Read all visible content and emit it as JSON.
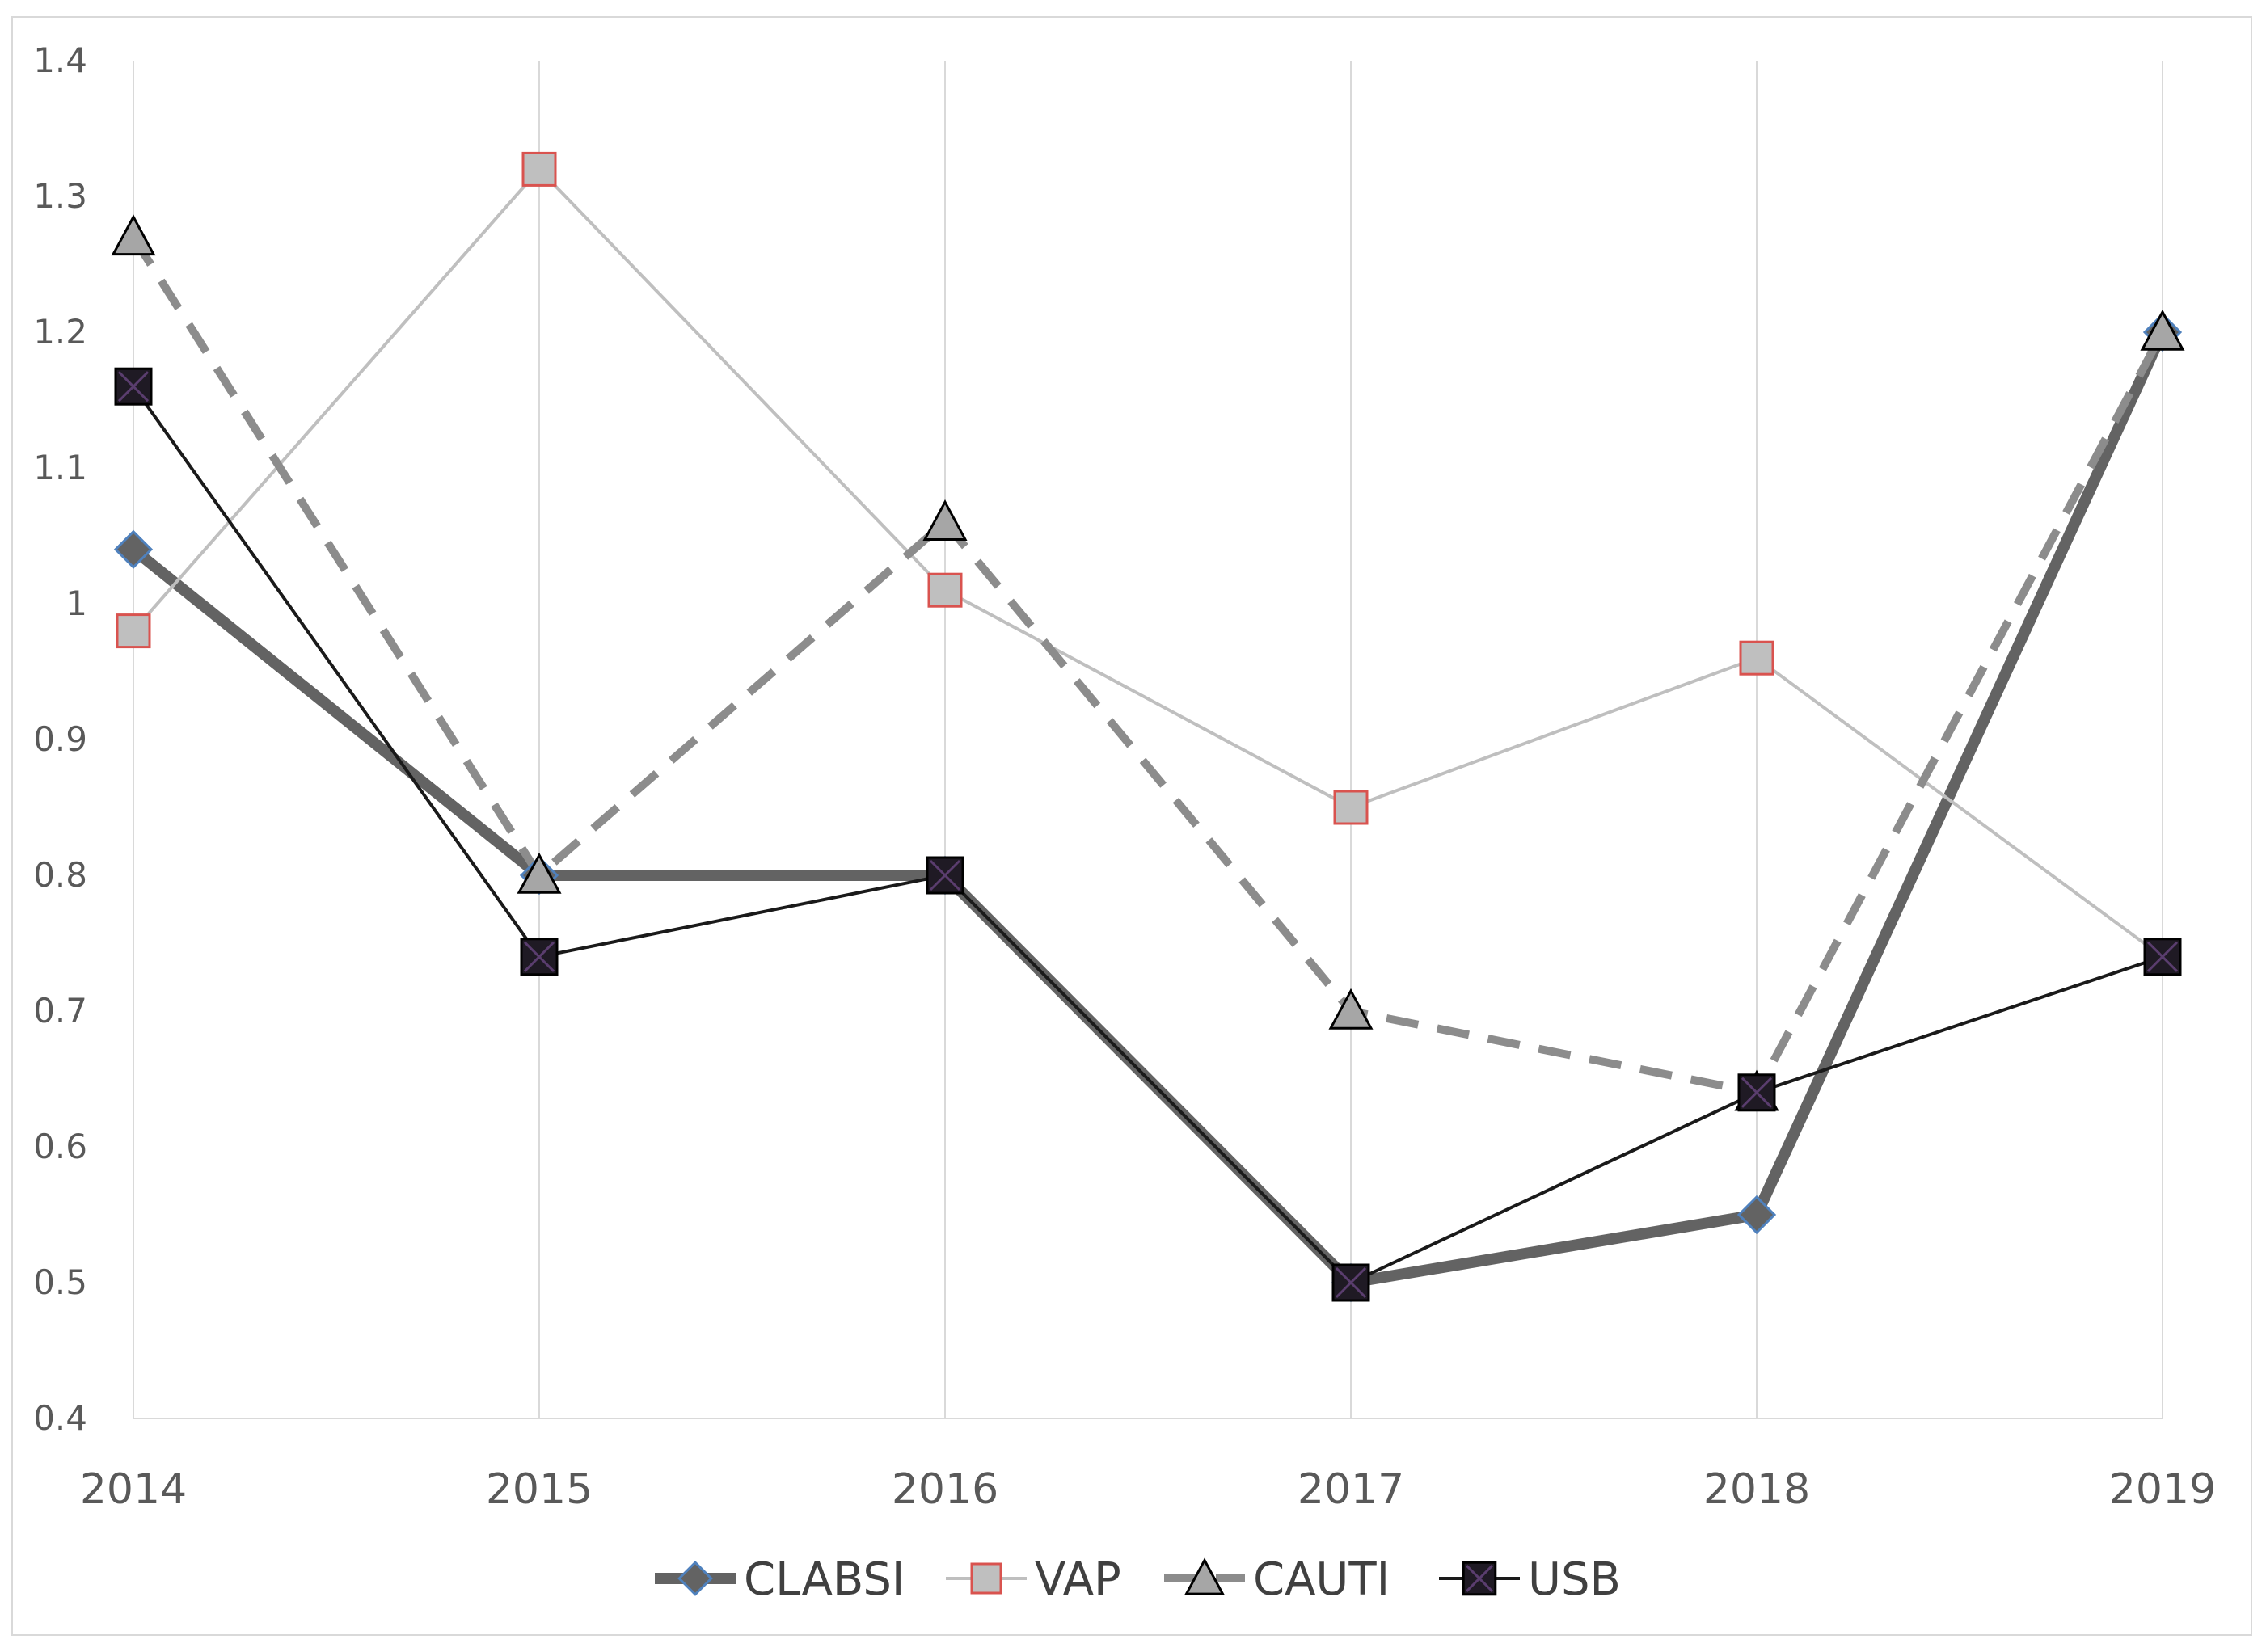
{
  "chart_data": {
    "type": "line",
    "title": "",
    "xlabel": "",
    "ylabel": "",
    "categories": [
      "2014",
      "2015",
      "2016",
      "2017",
      "2018",
      "2019"
    ],
    "ylim": [
      0.4,
      1.4
    ],
    "yticks": [
      0.4,
      0.5,
      0.6,
      0.7,
      0.8,
      0.9,
      1,
      1.1,
      1.2,
      1.3,
      1.4
    ],
    "ytick_labels": [
      "0.4",
      "0.5",
      "0.6",
      "0.7",
      "0.8",
      "0.9",
      "1",
      "1.1",
      "1.2",
      "1.3",
      "1.4"
    ],
    "grid": "vertical",
    "legend_position": "bottom",
    "series": [
      {
        "name": "CLABSI",
        "values": [
          1.04,
          0.8,
          0.8,
          0.5,
          0.55,
          1.2
        ],
        "color": "#636363",
        "marker": "diamond",
        "marker_fill": "#636363",
        "marker_stroke": "#4f81bd",
        "line_style": "solid-thick"
      },
      {
        "name": "VAP",
        "values": [
          0.98,
          1.32,
          1.01,
          0.85,
          0.96,
          0.74
        ],
        "color": "#bfbfbf",
        "marker": "square",
        "marker_fill": "#bfbfbf",
        "marker_stroke": "#d9534f",
        "line_style": "solid-thin"
      },
      {
        "name": "CAUTI",
        "values": [
          1.27,
          0.8,
          1.06,
          0.7,
          0.64,
          1.2
        ],
        "color": "#8c8c8c",
        "marker": "triangle",
        "marker_fill": "#a6a6a6",
        "marker_stroke": "#000000",
        "line_style": "dashed"
      },
      {
        "name": "USB",
        "values": [
          1.16,
          0.74,
          0.8,
          0.5,
          0.64,
          0.74
        ],
        "color": "#1a1a1a",
        "marker": "square-x",
        "marker_fill": "#1f1a24",
        "marker_stroke": "#000000",
        "line_style": "solid-thin"
      }
    ]
  }
}
